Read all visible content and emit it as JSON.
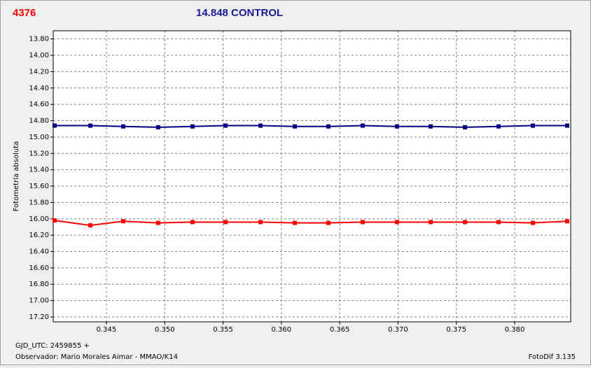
{
  "chart_data": {
    "type": "line",
    "label": "4376",
    "title": "14.848 CONTROL",
    "ylabel": "Fotometría absoluta",
    "footer": [
      "GJD_UTC: 2459855 +",
      "Observador: Mario Morales Aimar - MMAO/K14"
    ],
    "software": "FotoDif 3.135",
    "x": [
      0.34056,
      0.34362,
      0.34644,
      0.34944,
      0.35238,
      0.35521,
      0.35821,
      0.36115,
      0.36403,
      0.36697,
      0.36991,
      0.3728,
      0.37574,
      0.37862,
      0.38156,
      0.3845
    ],
    "series": [
      {
        "color": "#000080",
        "values": [
          14.86,
          14.86,
          14.87,
          14.88,
          14.87,
          14.86,
          14.86,
          14.87,
          14.87,
          14.86,
          14.87,
          14.87,
          14.88,
          14.87,
          14.86,
          14.86
        ]
      },
      {
        "color": "#ff0000",
        "values": [
          16.02,
          16.08,
          16.03,
          16.05,
          16.04,
          16.04,
          16.04,
          16.05,
          16.05,
          16.04,
          16.04,
          16.04,
          16.04,
          16.04,
          16.05,
          16.03
        ]
      }
    ],
    "xlim": [
      0.34044,
      0.3848
    ],
    "xticks": [
      0.345,
      {
        "value": 0.35,
        "label": "0.350"
      },
      0.355,
      {
        "value": 0.36,
        "label": "0.360"
      },
      0.365,
      {
        "value": 0.37,
        "label": "0.370"
      },
      0.375,
      {
        "value": 0.38,
        "label": "0.380"
      }
    ],
    "ylim": [
      13.7,
      17.26
    ],
    "y_inverted": true,
    "yticks": [
      {
        "value": 13.8,
        "label": "13.80"
      },
      {
        "value": 14.0,
        "label": "14.00"
      },
      {
        "value": 14.2,
        "label": "14.20"
      },
      {
        "value": 14.4,
        "label": "14.40"
      },
      {
        "value": 14.6,
        "label": "14.60"
      },
      {
        "value": 14.8,
        "label": "14.80"
      },
      {
        "value": 15.0,
        "label": "15.00"
      },
      {
        "value": 15.2,
        "label": "15.20"
      },
      {
        "value": 15.4,
        "label": "15.40"
      },
      {
        "value": 15.6,
        "label": "15.60"
      },
      {
        "value": 15.8,
        "label": "15.80"
      },
      {
        "value": 16.0,
        "label": "16.00"
      },
      {
        "value": 16.2,
        "label": "16.20"
      },
      {
        "value": 16.4,
        "label": "16.40"
      },
      {
        "value": 16.6,
        "label": "16.60"
      },
      {
        "value": 16.8,
        "label": "16.80"
      },
      {
        "value": 17.0,
        "label": "17.00"
      },
      {
        "value": 17.2,
        "label": "17.20"
      }
    ],
    "grid": true
  }
}
